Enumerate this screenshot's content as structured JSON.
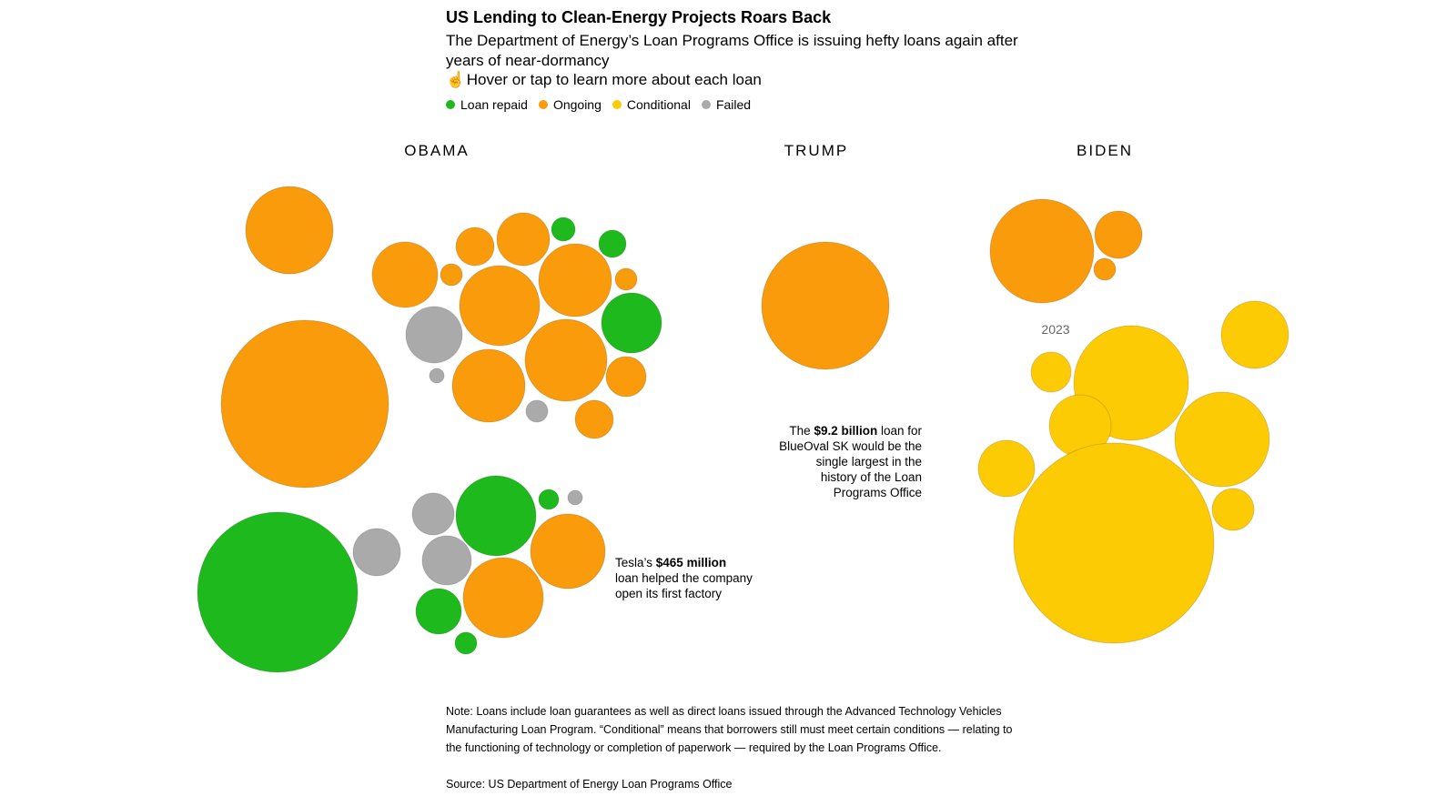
{
  "header": {
    "title": "US Lending to Clean-Energy Projects Roars Back",
    "subtitle": "The Department of Energy’s Loan Programs Office is issuing hefty loans again after years of near-dormancy",
    "hint": "Hover or tap to learn more about each loan",
    "hint_icon": "pointer-hand-icon"
  },
  "legend": [
    {
      "label": "Loan repaid",
      "color": "#1db91d"
    },
    {
      "label": "Ongoing",
      "color": "#f99b0a"
    },
    {
      "label": "Conditional",
      "color": "#fccb04"
    },
    {
      "label": "Failed",
      "color": "#aaaaaa"
    }
  ],
  "chart_data": {
    "type": "bubble",
    "panels": [
      "OBAMA",
      "TRUMP",
      "BIDEN"
    ],
    "status_colors": {
      "Loan repaid": "#1db91d",
      "Ongoing": "#f99b0a",
      "Conditional": "#fccb04",
      "Failed": "#aaaaaa"
    },
    "year_label": "2023",
    "annotations": {
      "tesla": {
        "pre": "Tesla’s ",
        "bold": "$465 million",
        "post": "loan helped the company open its first factory"
      },
      "blueoval": {
        "pre": "The ",
        "bold": "$9.2 billion",
        "post": " loan for BlueOval SK would be the single largest in the history of the Loan Programs Office"
      }
    }
  },
  "footer": {
    "note": "Note: Loans include loan guarantees as well as direct loans issued through the Advanced Technology Vehicles Manufacturing Loan Program. “Conditional” means that borrowers still must meet certain conditions — relating to the functioning of technology or completion of paperwork — required by the Loan Programs Office.",
    "source": "Source: US Department of Energy Loan Programs Office"
  }
}
